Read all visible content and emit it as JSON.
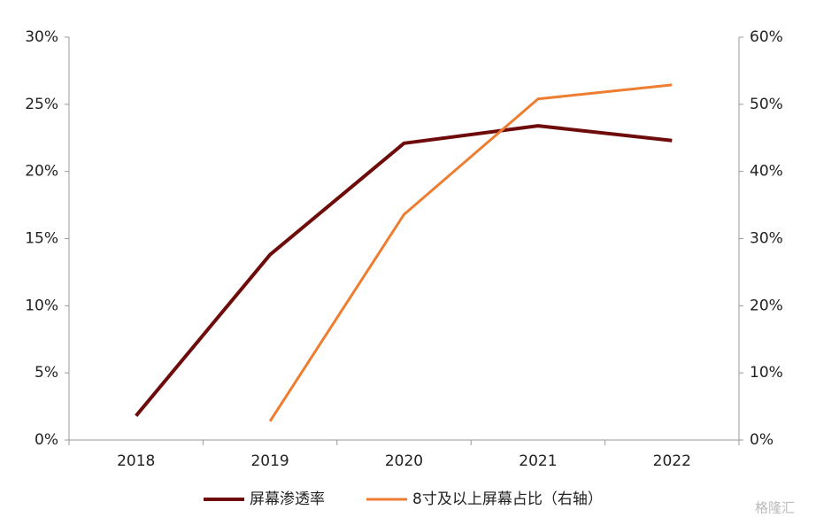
{
  "chart_data": {
    "type": "line",
    "categories": [
      "2018",
      "2019",
      "2020",
      "2021",
      "2022"
    ],
    "series": [
      {
        "name": "屏幕渗透率",
        "color": "#6e0b0b",
        "values": [
          1.8,
          13.8,
          22.1,
          23.4,
          22.3
        ]
      },
      {
        "name": "8寸及以上屏幕占比（右轴）",
        "color": "#ed7d31",
        "axis": "y2",
        "values": [
          null,
          2.8,
          33.6,
          50.8,
          52.9
        ]
      }
    ],
    "ylim": [
      0,
      30
    ],
    "yticks": [
      {
        "value": 0,
        "label": "0%"
      },
      {
        "value": 5,
        "label": "5%"
      },
      {
        "value": 10,
        "label": "10%"
      },
      {
        "value": 15,
        "label": "15%"
      },
      {
        "value": 20,
        "label": "20%"
      },
      {
        "value": 25,
        "label": "25%"
      },
      {
        "value": 30,
        "label": "30%"
      }
    ],
    "y2lim": [
      0,
      60
    ],
    "y2ticks": [
      {
        "value": 0,
        "label": "0%"
      },
      {
        "value": 10,
        "label": "10%"
      },
      {
        "value": 20,
        "label": "20%"
      },
      {
        "value": 30,
        "label": "30%"
      },
      {
        "value": 40,
        "label": "40%"
      },
      {
        "value": 50,
        "label": "50%"
      },
      {
        "value": 60,
        "label": "60%"
      }
    ],
    "legend": "bottom",
    "watermark": "格隆汇"
  }
}
